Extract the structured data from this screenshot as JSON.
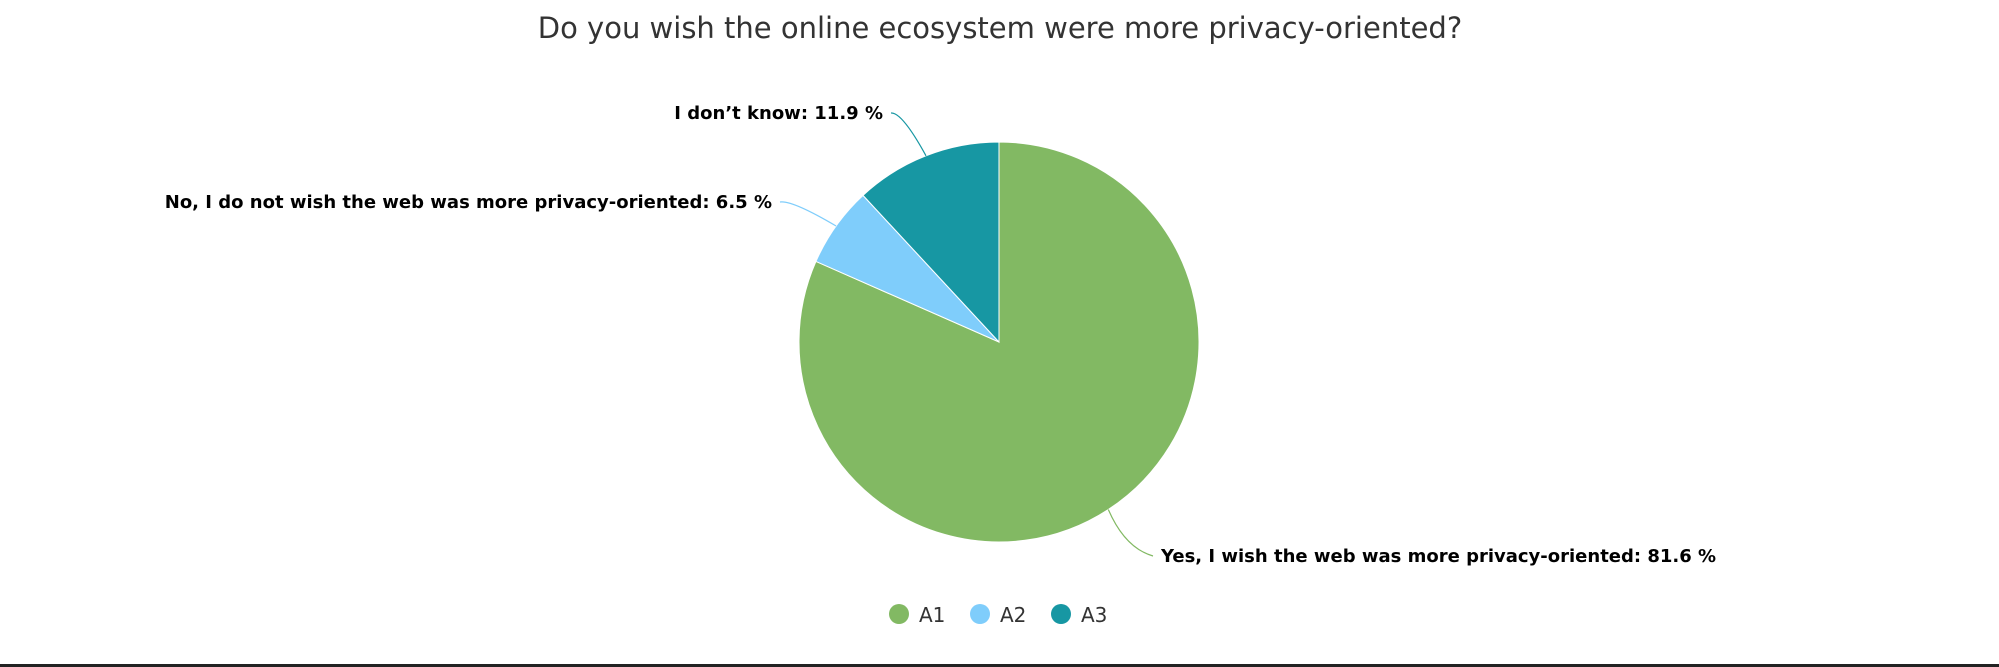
{
  "chart_data": {
    "type": "pie",
    "title": "Do you wish the online ecosystem were more privacy-oriented?",
    "slices": [
      {
        "label": "Yes, I wish the web was more privacy-oriented",
        "value": 81.6,
        "display": "Yes, I wish the web was more privacy-oriented: 81.6 %",
        "legend": "A1",
        "color": "#82b963"
      },
      {
        "label": "No, I do not wish the web was more privacy-oriented",
        "value": 6.5,
        "display": "No, I do not wish the web was more privacy-oriented: 6.5 %",
        "legend": "A2",
        "color": "#7fcdfb"
      },
      {
        "label": "I don't know",
        "value": 11.9,
        "display": "I don’t know: 11.9 %",
        "legend": "A3",
        "color": "#1797a3"
      }
    ],
    "legend_position": "bottom",
    "start": "top",
    "direction": "clockwise"
  }
}
